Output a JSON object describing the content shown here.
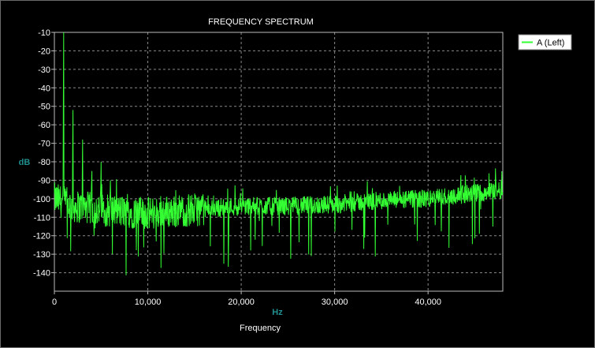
{
  "chart_data": {
    "type": "line",
    "title": "FREQUENCY SPECTRUM",
    "xlabel": "Frequency",
    "x_unit": "Hz",
    "y_unit": "dB",
    "xlim": [
      0,
      48000
    ],
    "ylim": [
      -150,
      -10
    ],
    "x_ticks": [
      0,
      10000,
      20000,
      30000,
      40000
    ],
    "x_tick_labels": [
      "0",
      "10,000",
      "20,000",
      "30,000",
      "40,000"
    ],
    "y_ticks": [
      -10,
      -20,
      -30,
      -40,
      -50,
      -60,
      -70,
      -80,
      -90,
      -100,
      -110,
      -120,
      -130,
      -140
    ],
    "y_tick_labels": [
      "-10",
      "-20",
      "-30",
      "-40",
      "-50",
      "-60",
      "-70",
      "-80",
      "-90",
      "-100",
      "-110",
      "-120",
      "-130",
      "-140"
    ],
    "grid": true,
    "legend_position": "top-right",
    "series": [
      {
        "name": "A (Left)",
        "color": "#33ff33",
        "peaks": [
          {
            "x": 1000,
            "y": -10
          },
          {
            "x": 2000,
            "y": -52
          },
          {
            "x": 3000,
            "y": -68
          },
          {
            "x": 4000,
            "y": -85
          },
          {
            "x": 5000,
            "y": -80
          },
          {
            "x": 6000,
            "y": -90
          }
        ],
        "floor_envelope": [
          {
            "x": 0,
            "y": -100
          },
          {
            "x": 2000,
            "y": -104
          },
          {
            "x": 5000,
            "y": -106
          },
          {
            "x": 10000,
            "y": -108
          },
          {
            "x": 15000,
            "y": -106
          },
          {
            "x": 20000,
            "y": -104
          },
          {
            "x": 25000,
            "y": -104
          },
          {
            "x": 30000,
            "y": -103
          },
          {
            "x": 35000,
            "y": -101
          },
          {
            "x": 40000,
            "y": -100
          },
          {
            "x": 45000,
            "y": -97
          },
          {
            "x": 48000,
            "y": -95
          }
        ]
      }
    ]
  }
}
